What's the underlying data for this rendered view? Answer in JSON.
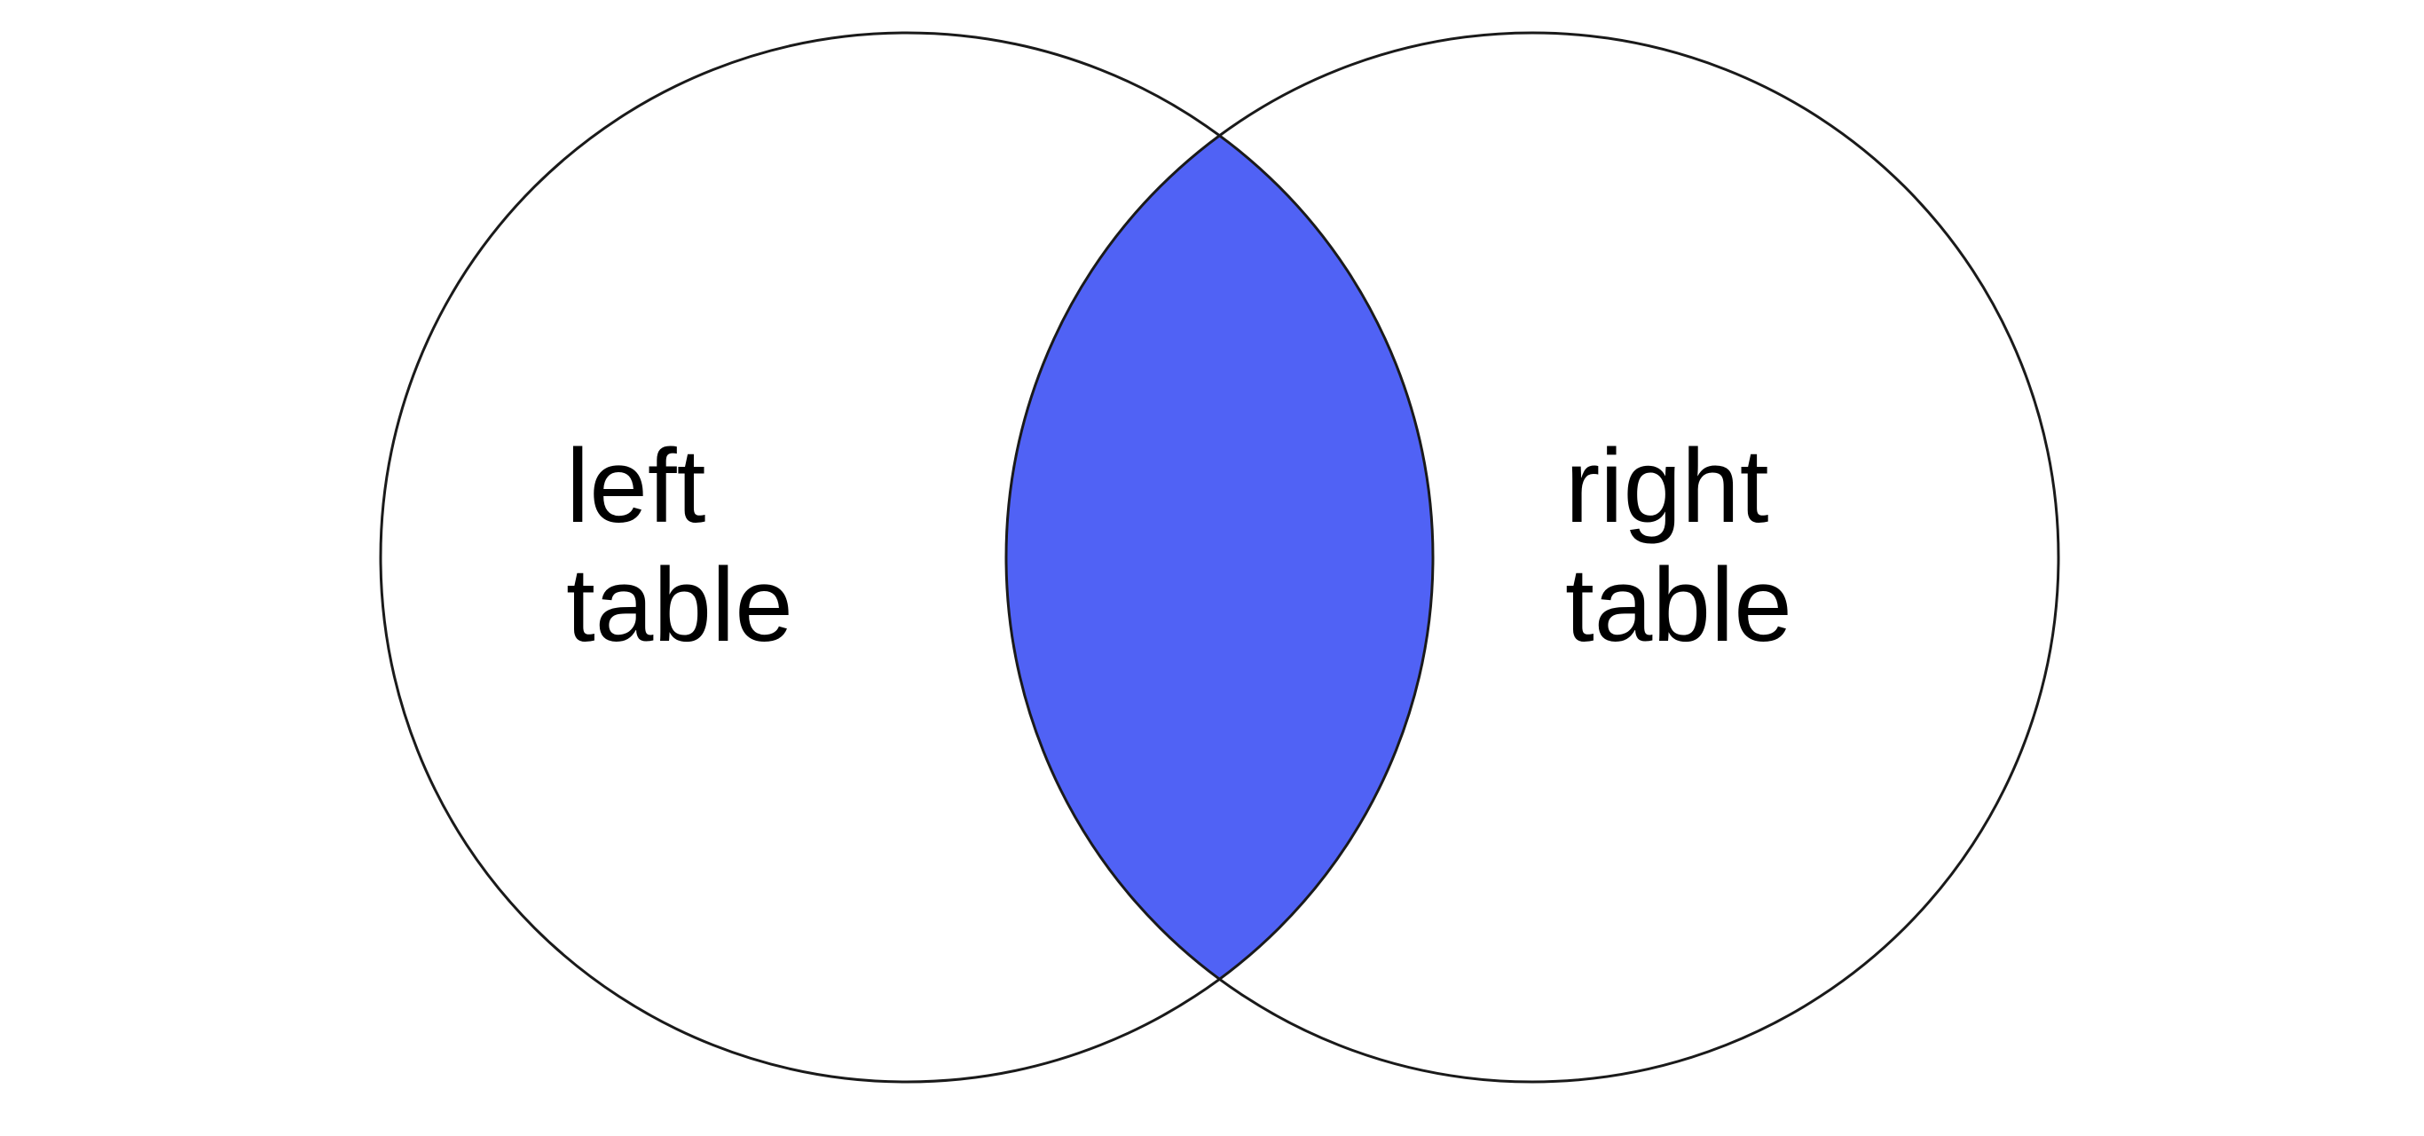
{
  "diagram": {
    "left_circle": {
      "label_lines": [
        "left",
        "table"
      ]
    },
    "right_circle": {
      "label_lines": [
        "right",
        "table"
      ]
    },
    "intersection_fill_color": "#5062F5",
    "circle_stroke_color": "#1a1a1a",
    "background_color": "#ffffff"
  }
}
